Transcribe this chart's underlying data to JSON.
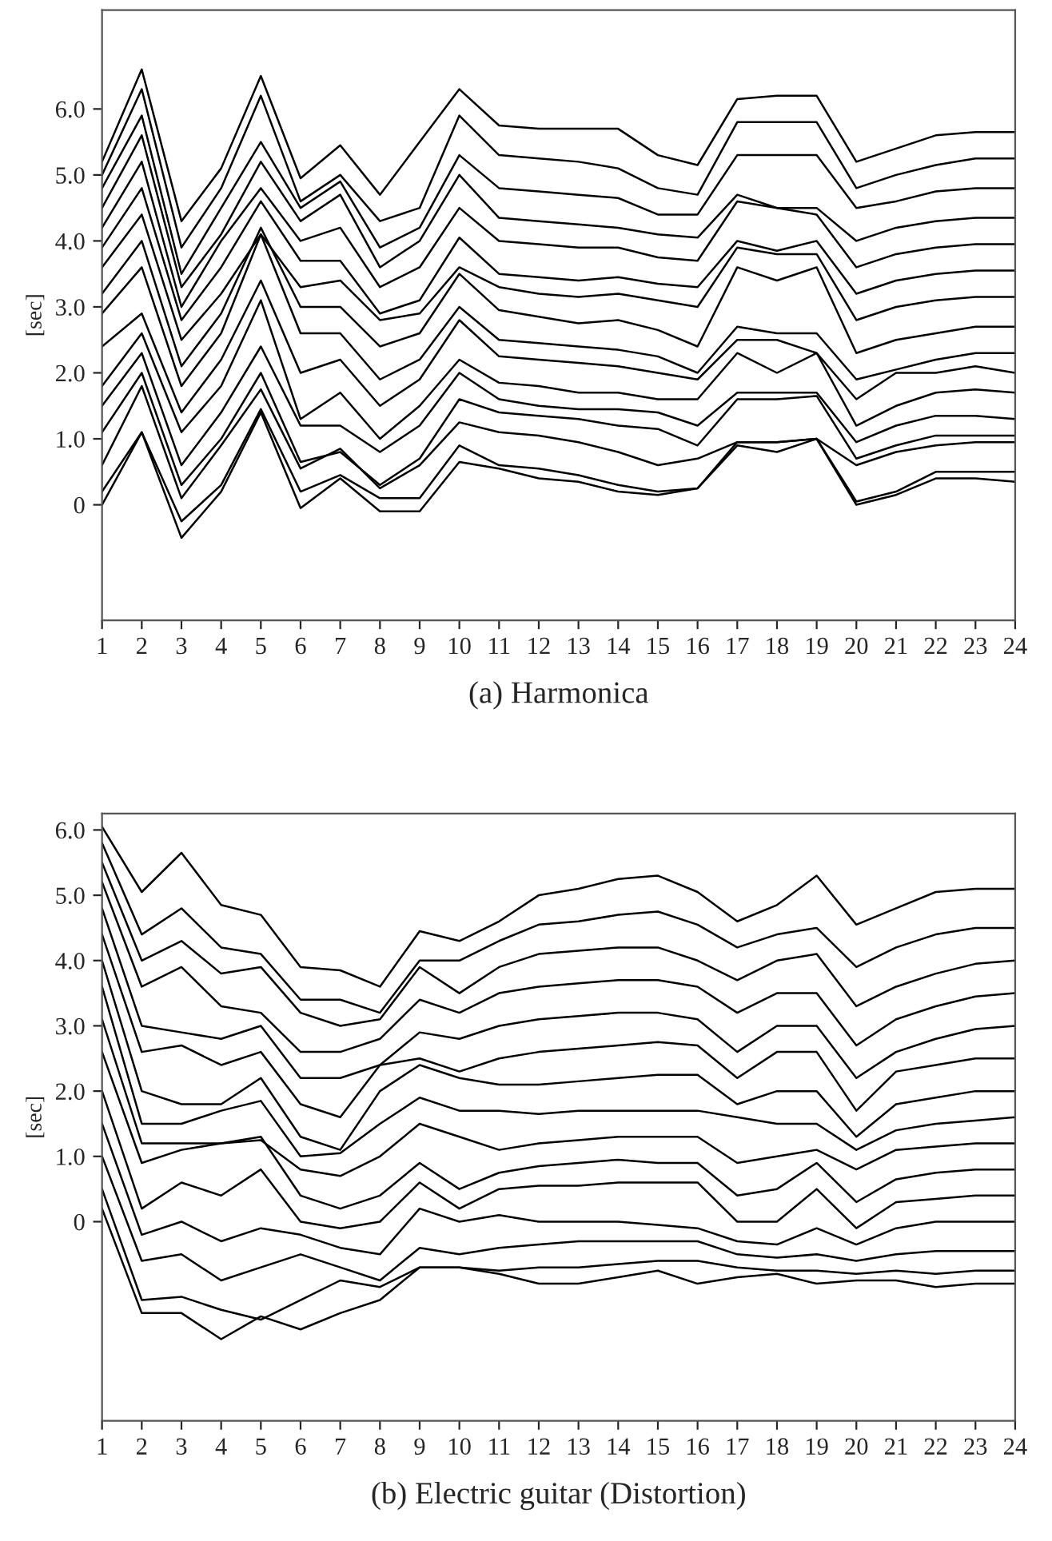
{
  "chart_data": [
    {
      "type": "line",
      "xlabel": "(a) Harmonica",
      "ylabel": "[sec]",
      "x": [
        1,
        2,
        3,
        4,
        5,
        6,
        7,
        8,
        9,
        10,
        11,
        12,
        13,
        14,
        15,
        16,
        17,
        18,
        19,
        20,
        21,
        22,
        23,
        24
      ],
      "xlim": [
        1,
        24
      ],
      "xticks": [
        1,
        2,
        3,
        4,
        5,
        6,
        7,
        8,
        9,
        10,
        11,
        12,
        13,
        14,
        15,
        16,
        17,
        18,
        19,
        20,
        21,
        22,
        23,
        24
      ],
      "ylim": [
        -1.75,
        7.5
      ],
      "yticks": [
        {
          "value": 0,
          "label": "0"
        },
        {
          "value": 1,
          "label": "1.0"
        },
        {
          "value": 2,
          "label": "2.0"
        },
        {
          "value": 3,
          "label": "3.0"
        },
        {
          "value": 4,
          "label": "4.0"
        },
        {
          "value": 5,
          "label": "5.0"
        },
        {
          "value": 6,
          "label": "6.0"
        }
      ],
      "grid": false,
      "legend": false,
      "marker": "none",
      "line_style": "solid",
      "series": [
        {
          "color": "#000000",
          "values": [
            0,
            1.1,
            -0.5,
            0.2,
            1.4,
            -0.05,
            0.4,
            -0.1,
            -0.1,
            0.65,
            0.55,
            0.4,
            0.35,
            0.2,
            0.15,
            0.25,
            0.9,
            0.8,
            1.0,
            0.0,
            0.15,
            0.4,
            0.4,
            0.35
          ]
        },
        {
          "color": "#000000",
          "values": [
            0.2,
            1.1,
            -0.25,
            0.3,
            1.45,
            0.2,
            0.45,
            0.1,
            0.1,
            0.9,
            0.6,
            0.55,
            0.45,
            0.3,
            0.2,
            0.25,
            0.95,
            0.95,
            1.0,
            0.05,
            0.2,
            0.5,
            0.5,
            0.5
          ]
        },
        {
          "color": "#000000",
          "values": [
            0.6,
            1.8,
            0.1,
            0.9,
            1.75,
            0.55,
            0.85,
            0.25,
            0.6,
            1.25,
            1.1,
            1.05,
            0.95,
            0.8,
            0.6,
            0.7,
            0.95,
            0.95,
            1.0,
            0.6,
            0.8,
            0.9,
            0.95,
            0.95
          ]
        },
        {
          "color": "#000000",
          "values": [
            1.1,
            2.0,
            0.3,
            1.0,
            2.0,
            0.65,
            0.8,
            0.3,
            0.7,
            1.6,
            1.4,
            1.35,
            1.3,
            1.2,
            1.15,
            0.9,
            1.6,
            1.6,
            1.65,
            0.7,
            0.9,
            1.05,
            1.05,
            1.05
          ]
        },
        {
          "color": "#000000",
          "values": [
            1.5,
            2.3,
            0.6,
            1.4,
            2.4,
            1.2,
            1.2,
            0.8,
            1.2,
            2.0,
            1.6,
            1.5,
            1.45,
            1.45,
            1.4,
            1.2,
            1.7,
            1.7,
            1.7,
            0.95,
            1.2,
            1.35,
            1.35,
            1.3
          ]
        },
        {
          "color": "#000000",
          "values": [
            1.8,
            2.6,
            1.1,
            1.8,
            3.1,
            1.3,
            1.7,
            1.0,
            1.5,
            2.2,
            1.85,
            1.8,
            1.7,
            1.7,
            1.6,
            1.6,
            2.3,
            2.0,
            2.3,
            1.2,
            1.5,
            1.7,
            1.75,
            1.7
          ]
        },
        {
          "color": "#000000",
          "values": [
            2.4,
            2.9,
            1.4,
            2.2,
            3.4,
            2.0,
            2.2,
            1.5,
            1.9,
            2.8,
            2.25,
            2.2,
            2.15,
            2.1,
            2.0,
            1.9,
            2.5,
            2.5,
            2.3,
            1.6,
            2.0,
            2.0,
            2.1,
            2.0
          ]
        },
        {
          "color": "#000000",
          "values": [
            2.9,
            3.6,
            1.8,
            2.6,
            4.1,
            2.6,
            2.6,
            1.9,
            2.2,
            3.0,
            2.5,
            2.45,
            2.4,
            2.35,
            2.25,
            2.0,
            2.7,
            2.6,
            2.6,
            1.9,
            2.05,
            2.2,
            2.3,
            2.3
          ]
        },
        {
          "color": "#000000",
          "values": [
            3.2,
            4.0,
            2.1,
            2.9,
            4.2,
            3.0,
            3.0,
            2.4,
            2.6,
            3.5,
            2.95,
            2.85,
            2.75,
            2.8,
            2.65,
            2.4,
            3.6,
            3.4,
            3.6,
            2.3,
            2.5,
            2.6,
            2.7,
            2.7
          ]
        },
        {
          "color": "#000000",
          "values": [
            3.6,
            4.4,
            2.5,
            3.2,
            4.1,
            3.3,
            3.4,
            2.8,
            2.9,
            3.6,
            3.3,
            3.2,
            3.15,
            3.2,
            3.1,
            3.0,
            3.9,
            3.8,
            3.8,
            2.8,
            3.0,
            3.1,
            3.15,
            3.15
          ]
        },
        {
          "color": "#000000",
          "values": [
            3.9,
            4.8,
            2.8,
            3.6,
            4.6,
            3.7,
            3.7,
            2.9,
            3.1,
            4.05,
            3.5,
            3.45,
            3.4,
            3.45,
            3.35,
            3.3,
            4.0,
            3.85,
            4.0,
            3.2,
            3.4,
            3.5,
            3.55,
            3.55
          ]
        },
        {
          "color": "#000000",
          "values": [
            4.2,
            5.2,
            3.0,
            4.0,
            4.8,
            4.0,
            4.2,
            3.3,
            3.6,
            4.5,
            4.0,
            3.95,
            3.9,
            3.9,
            3.75,
            3.7,
            4.6,
            4.5,
            4.4,
            3.6,
            3.8,
            3.9,
            3.95,
            3.95
          ]
        },
        {
          "color": "#000000",
          "values": [
            4.5,
            5.6,
            3.3,
            4.1,
            5.2,
            4.3,
            4.7,
            3.6,
            4.0,
            5.0,
            4.35,
            4.3,
            4.25,
            4.2,
            4.1,
            4.05,
            4.7,
            4.5,
            4.5,
            4.0,
            4.2,
            4.3,
            4.35,
            4.35
          ]
        },
        {
          "color": "#000000",
          "values": [
            4.8,
            5.9,
            3.5,
            4.5,
            5.5,
            4.5,
            4.9,
            3.9,
            4.2,
            5.3,
            4.8,
            4.75,
            4.7,
            4.65,
            4.4,
            4.4,
            5.3,
            5.3,
            5.3,
            4.5,
            4.6,
            4.75,
            4.8,
            4.8
          ]
        },
        {
          "color": "#000000",
          "values": [
            5.0,
            6.3,
            3.9,
            4.8,
            6.2,
            4.6,
            5.0,
            4.3,
            4.5,
            5.9,
            5.3,
            5.25,
            5.2,
            5.1,
            4.8,
            4.7,
            5.8,
            5.8,
            5.8,
            4.8,
            5.0,
            5.15,
            5.25,
            5.25
          ]
        },
        {
          "color": "#000000",
          "values": [
            5.2,
            6.6,
            4.3,
            5.1,
            6.5,
            4.95,
            5.45,
            4.7,
            5.5,
            6.3,
            5.75,
            5.7,
            5.7,
            5.7,
            5.3,
            5.15,
            6.15,
            6.2,
            6.2,
            5.2,
            5.4,
            5.6,
            5.65,
            5.65
          ]
        }
      ]
    },
    {
      "type": "line",
      "xlabel": "(b) Electric guitar (Distortion)",
      "ylabel": "[sec]",
      "x": [
        1,
        2,
        3,
        4,
        5,
        6,
        7,
        8,
        9,
        10,
        11,
        12,
        13,
        14,
        15,
        16,
        17,
        18,
        19,
        20,
        21,
        22,
        23,
        24
      ],
      "xlim": [
        1,
        24
      ],
      "xticks": [
        1,
        2,
        3,
        4,
        5,
        6,
        7,
        8,
        9,
        10,
        11,
        12,
        13,
        14,
        15,
        16,
        17,
        18,
        19,
        20,
        21,
        22,
        23,
        24
      ],
      "ylim": [
        -3.05,
        6.25
      ],
      "yticks": [
        {
          "value": 0,
          "label": "0"
        },
        {
          "value": 1,
          "label": "1.0"
        },
        {
          "value": 2,
          "label": "2.0"
        },
        {
          "value": 3,
          "label": "3.0"
        },
        {
          "value": 4,
          "label": "4.0"
        },
        {
          "value": 5,
          "label": "5.0"
        },
        {
          "value": 6,
          "label": "6.0"
        }
      ],
      "grid": false,
      "legend": false,
      "marker": "none",
      "line_style": "solid",
      "series": [
        {
          "color": "#000000",
          "values": [
            0.2,
            -1.4,
            -1.4,
            -1.8,
            -1.45,
            -1.65,
            -1.4,
            -1.2,
            -0.7,
            -0.7,
            -0.8,
            -0.95,
            -0.95,
            -0.85,
            -0.75,
            -0.95,
            -0.85,
            -0.8,
            -0.95,
            -0.9,
            -0.9,
            -1.0,
            -0.95,
            -0.95
          ]
        },
        {
          "color": "#000000",
          "values": [
            0.5,
            -1.2,
            -1.15,
            -1.35,
            -1.5,
            -1.2,
            -0.9,
            -1.0,
            -0.7,
            -0.7,
            -0.75,
            -0.7,
            -0.7,
            -0.65,
            -0.6,
            -0.6,
            -0.7,
            -0.75,
            -0.75,
            -0.8,
            -0.75,
            -0.8,
            -0.75,
            -0.75
          ]
        },
        {
          "color": "#000000",
          "values": [
            1.0,
            -0.6,
            -0.5,
            -0.9,
            -0.7,
            -0.5,
            -0.7,
            -0.9,
            -0.4,
            -0.5,
            -0.4,
            -0.35,
            -0.3,
            -0.3,
            -0.3,
            -0.3,
            -0.5,
            -0.55,
            -0.5,
            -0.6,
            -0.5,
            -0.45,
            -0.45,
            -0.45
          ]
        },
        {
          "color": "#000000",
          "values": [
            1.5,
            -0.2,
            0.0,
            -0.3,
            -0.1,
            -0.2,
            -0.4,
            -0.5,
            0.2,
            0.0,
            0.1,
            0.0,
            0.0,
            0.0,
            -0.05,
            -0.1,
            -0.3,
            -0.35,
            -0.1,
            -0.35,
            -0.1,
            0.0,
            0.0,
            0.0
          ]
        },
        {
          "color": "#000000",
          "values": [
            2.0,
            0.2,
            0.6,
            0.4,
            0.8,
            0.0,
            -0.1,
            0.0,
            0.6,
            0.2,
            0.5,
            0.55,
            0.55,
            0.6,
            0.6,
            0.6,
            0.0,
            0.0,
            0.5,
            -0.1,
            0.3,
            0.35,
            0.4,
            0.4
          ]
        },
        {
          "color": "#000000",
          "values": [
            2.6,
            0.9,
            1.1,
            1.2,
            1.3,
            0.4,
            0.2,
            0.4,
            0.9,
            0.5,
            0.75,
            0.85,
            0.9,
            0.95,
            0.9,
            0.9,
            0.4,
            0.5,
            0.9,
            0.3,
            0.65,
            0.75,
            0.8,
            0.8
          ]
        },
        {
          "color": "#000000",
          "values": [
            3.1,
            1.2,
            1.2,
            1.2,
            1.25,
            0.8,
            0.7,
            1.0,
            1.5,
            1.3,
            1.1,
            1.2,
            1.25,
            1.3,
            1.3,
            1.3,
            0.9,
            1.0,
            1.1,
            0.8,
            1.1,
            1.15,
            1.2,
            1.2
          ]
        },
        {
          "color": "#000000",
          "values": [
            3.6,
            1.5,
            1.5,
            1.7,
            1.85,
            1.0,
            1.05,
            1.5,
            1.9,
            1.7,
            1.7,
            1.65,
            1.7,
            1.7,
            1.7,
            1.7,
            1.6,
            1.5,
            1.5,
            1.1,
            1.4,
            1.5,
            1.55,
            1.6
          ]
        },
        {
          "color": "#000000",
          "values": [
            4.0,
            2.0,
            1.8,
            1.8,
            2.2,
            1.3,
            1.1,
            2.0,
            2.4,
            2.2,
            2.1,
            2.1,
            2.15,
            2.2,
            2.25,
            2.25,
            1.8,
            2.0,
            2.0,
            1.3,
            1.8,
            1.9,
            2.0,
            2.0
          ]
        },
        {
          "color": "#000000",
          "values": [
            4.4,
            2.6,
            2.7,
            2.4,
            2.6,
            1.8,
            1.6,
            2.4,
            2.5,
            2.3,
            2.5,
            2.6,
            2.65,
            2.7,
            2.75,
            2.7,
            2.2,
            2.6,
            2.6,
            1.7,
            2.3,
            2.4,
            2.5,
            2.5
          ]
        },
        {
          "color": "#000000",
          "values": [
            4.8,
            3.0,
            2.9,
            2.8,
            3.0,
            2.2,
            2.2,
            2.4,
            2.9,
            2.8,
            3.0,
            3.1,
            3.15,
            3.2,
            3.2,
            3.1,
            2.6,
            3.0,
            3.0,
            2.2,
            2.6,
            2.8,
            2.95,
            3.0
          ]
        },
        {
          "color": "#000000",
          "values": [
            5.2,
            3.6,
            3.9,
            3.3,
            3.2,
            2.6,
            2.6,
            2.8,
            3.4,
            3.2,
            3.5,
            3.6,
            3.65,
            3.7,
            3.7,
            3.6,
            3.2,
            3.5,
            3.5,
            2.7,
            3.1,
            3.3,
            3.45,
            3.5
          ]
        },
        {
          "color": "#000000",
          "values": [
            5.5,
            4.0,
            4.3,
            3.8,
            3.9,
            3.2,
            3.0,
            3.1,
            3.9,
            3.5,
            3.9,
            4.1,
            4.15,
            4.2,
            4.2,
            4.0,
            3.7,
            4.0,
            4.1,
            3.3,
            3.6,
            3.8,
            3.95,
            4.0
          ]
        },
        {
          "color": "#000000",
          "values": [
            5.8,
            4.4,
            4.8,
            4.2,
            4.1,
            3.4,
            3.4,
            3.2,
            4.0,
            4.0,
            4.3,
            4.55,
            4.6,
            4.7,
            4.75,
            4.55,
            4.2,
            4.4,
            4.5,
            3.9,
            4.2,
            4.4,
            4.5,
            4.5
          ]
        },
        {
          "color": "#000000",
          "values": [
            6.05,
            5.05,
            5.65,
            4.85,
            4.7,
            3.9,
            3.85,
            3.6,
            4.45,
            4.3,
            4.6,
            5.0,
            5.1,
            5.25,
            5.3,
            5.05,
            4.6,
            4.85,
            5.3,
            4.55,
            4.8,
            5.05,
            5.1,
            5.1
          ]
        }
      ]
    }
  ]
}
